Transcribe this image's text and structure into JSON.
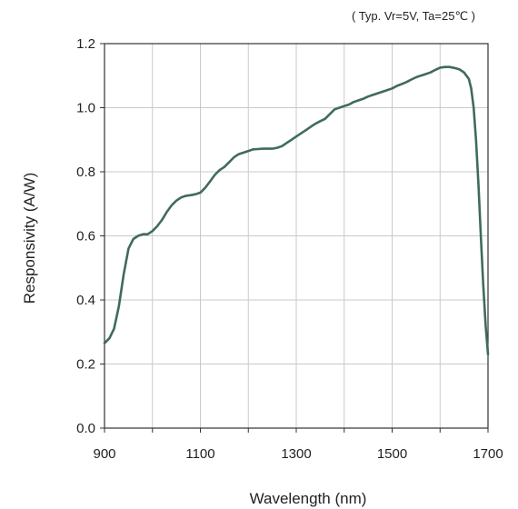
{
  "chart_data": {
    "type": "line",
    "annotation": "( Typ.  Vr=5V, Ta=25℃ )",
    "xlabel": "Wavelength (nm)",
    "ylabel": "Responsivity (A/W)",
    "xlim": [
      900,
      1700
    ],
    "ylim": [
      0.0,
      1.2
    ],
    "x_ticks": [
      900,
      1000,
      1100,
      1200,
      1300,
      1400,
      1500,
      1600,
      1700
    ],
    "x_tick_labels": [
      "900",
      "",
      "1100",
      "",
      "1300",
      "",
      "1500",
      "",
      "1700"
    ],
    "y_ticks": [
      0.0,
      0.2,
      0.4,
      0.6,
      0.8,
      1.0,
      1.2
    ],
    "y_tick_labels": [
      "0.0",
      "0.2",
      "0.4",
      "0.6",
      "0.8",
      "1.0",
      "1.2"
    ],
    "grid": true,
    "line_color": "#3f6b5c",
    "series": [
      {
        "x": [
          900,
          910,
          920,
          930,
          940,
          950,
          960,
          970,
          980,
          990,
          1000,
          1010,
          1020,
          1030,
          1040,
          1050,
          1060,
          1070,
          1080,
          1090,
          1100,
          1110,
          1120,
          1130,
          1140,
          1150,
          1160,
          1170,
          1180,
          1190,
          1200,
          1210,
          1220,
          1230,
          1240,
          1250,
          1260,
          1270,
          1280,
          1290,
          1300,
          1310,
          1320,
          1330,
          1340,
          1350,
          1360,
          1370,
          1380,
          1390,
          1400,
          1410,
          1420,
          1430,
          1440,
          1450,
          1460,
          1470,
          1480,
          1490,
          1500,
          1510,
          1520,
          1530,
          1540,
          1550,
          1560,
          1570,
          1580,
          1590,
          1600,
          1610,
          1620,
          1630,
          1640,
          1650,
          1660,
          1665,
          1670,
          1675,
          1680,
          1685,
          1690,
          1695,
          1700
        ],
        "y": [
          0.265,
          0.28,
          0.31,
          0.38,
          0.48,
          0.56,
          0.59,
          0.6,
          0.605,
          0.605,
          0.615,
          0.63,
          0.65,
          0.675,
          0.695,
          0.71,
          0.72,
          0.725,
          0.727,
          0.73,
          0.735,
          0.75,
          0.77,
          0.79,
          0.805,
          0.815,
          0.83,
          0.845,
          0.855,
          0.86,
          0.865,
          0.87,
          0.871,
          0.872,
          0.872,
          0.872,
          0.875,
          0.88,
          0.89,
          0.9,
          0.91,
          0.92,
          0.93,
          0.94,
          0.95,
          0.958,
          0.965,
          0.98,
          0.995,
          1.0,
          1.005,
          1.01,
          1.018,
          1.023,
          1.028,
          1.035,
          1.04,
          1.045,
          1.05,
          1.055,
          1.06,
          1.068,
          1.074,
          1.08,
          1.088,
          1.095,
          1.1,
          1.105,
          1.11,
          1.118,
          1.125,
          1.127,
          1.127,
          1.124,
          1.12,
          1.11,
          1.09,
          1.06,
          1.0,
          0.9,
          0.76,
          0.6,
          0.45,
          0.32,
          0.23
        ]
      }
    ]
  }
}
